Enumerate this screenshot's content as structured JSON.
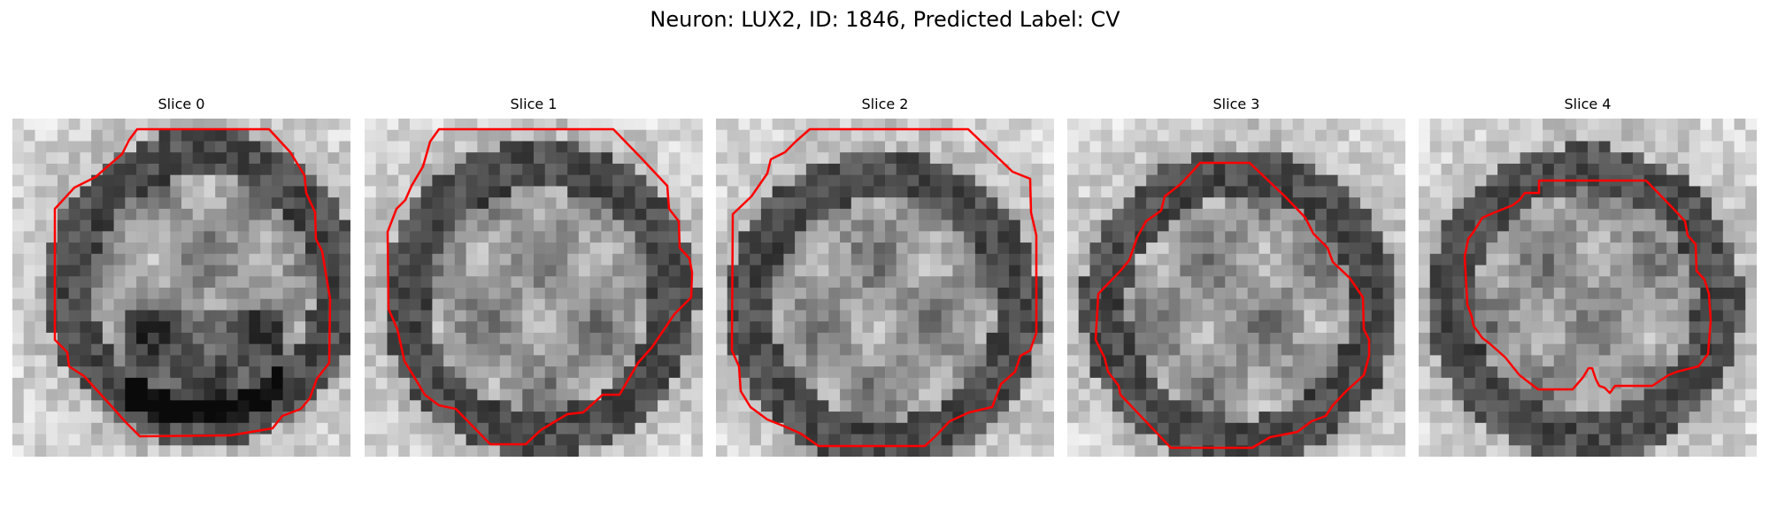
{
  "figure": {
    "title": "Neuron: LUX2, ID: 1846, Predicted Label: CV",
    "contour_color": "#ff0000"
  },
  "panels": [
    {
      "title": "Slice 0",
      "image": "grayscale-neuron-slice",
      "overlay": "red-boundary-contour"
    },
    {
      "title": "Slice 1",
      "image": "grayscale-neuron-slice",
      "overlay": "red-boundary-contour"
    },
    {
      "title": "Slice 2",
      "image": "grayscale-neuron-slice",
      "overlay": "red-boundary-contour"
    },
    {
      "title": "Slice 3",
      "image": "grayscale-neuron-slice",
      "overlay": "red-boundary-contour"
    },
    {
      "title": "Slice 4",
      "image": "grayscale-neuron-slice",
      "overlay": "red-boundary-contour"
    }
  ]
}
